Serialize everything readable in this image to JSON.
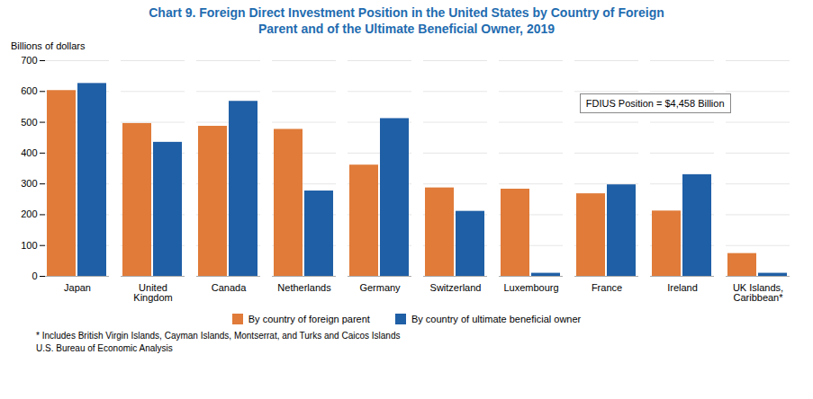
{
  "chart_data": {
    "type": "bar",
    "title": "Chart 9. Foreign Direct Investment Position in the United States by Country of Foreign\nParent and of the Ultimate Beneficial Owner, 2019",
    "y_label": "Billions of dollars",
    "categories": [
      "Japan",
      "United\nKingdom",
      "Canada",
      "Netherlands",
      "Germany",
      "Switzerland",
      "Luxembourg",
      "France",
      "Ireland",
      "UK Islands,\nCaribbean*"
    ],
    "series": [
      {
        "name": "By country of foreign parent",
        "color": "#e07b39",
        "values": [
          603,
          496,
          487,
          477,
          361,
          287,
          283,
          268,
          212,
          74
        ]
      },
      {
        "name": "By country of ultimate beneficial owner",
        "color": "#1f5fa6",
        "values": [
          626,
          435,
          568,
          277,
          512,
          211,
          10,
          297,
          330,
          10
        ]
      }
    ],
    "ylim": [
      0,
      700
    ],
    "yticks": [
      0,
      100,
      200,
      300,
      400,
      500,
      600,
      700
    ],
    "grid": true,
    "legend": "bottom",
    "annotation": "FDIUS Position = $4,458 Billion",
    "footnotes": [
      "* Includes British Virgin Islands, Cayman Islands, Montserrat, and Turks and Caicos Islands",
      "U.S. Bureau of Economic Analysis"
    ]
  }
}
